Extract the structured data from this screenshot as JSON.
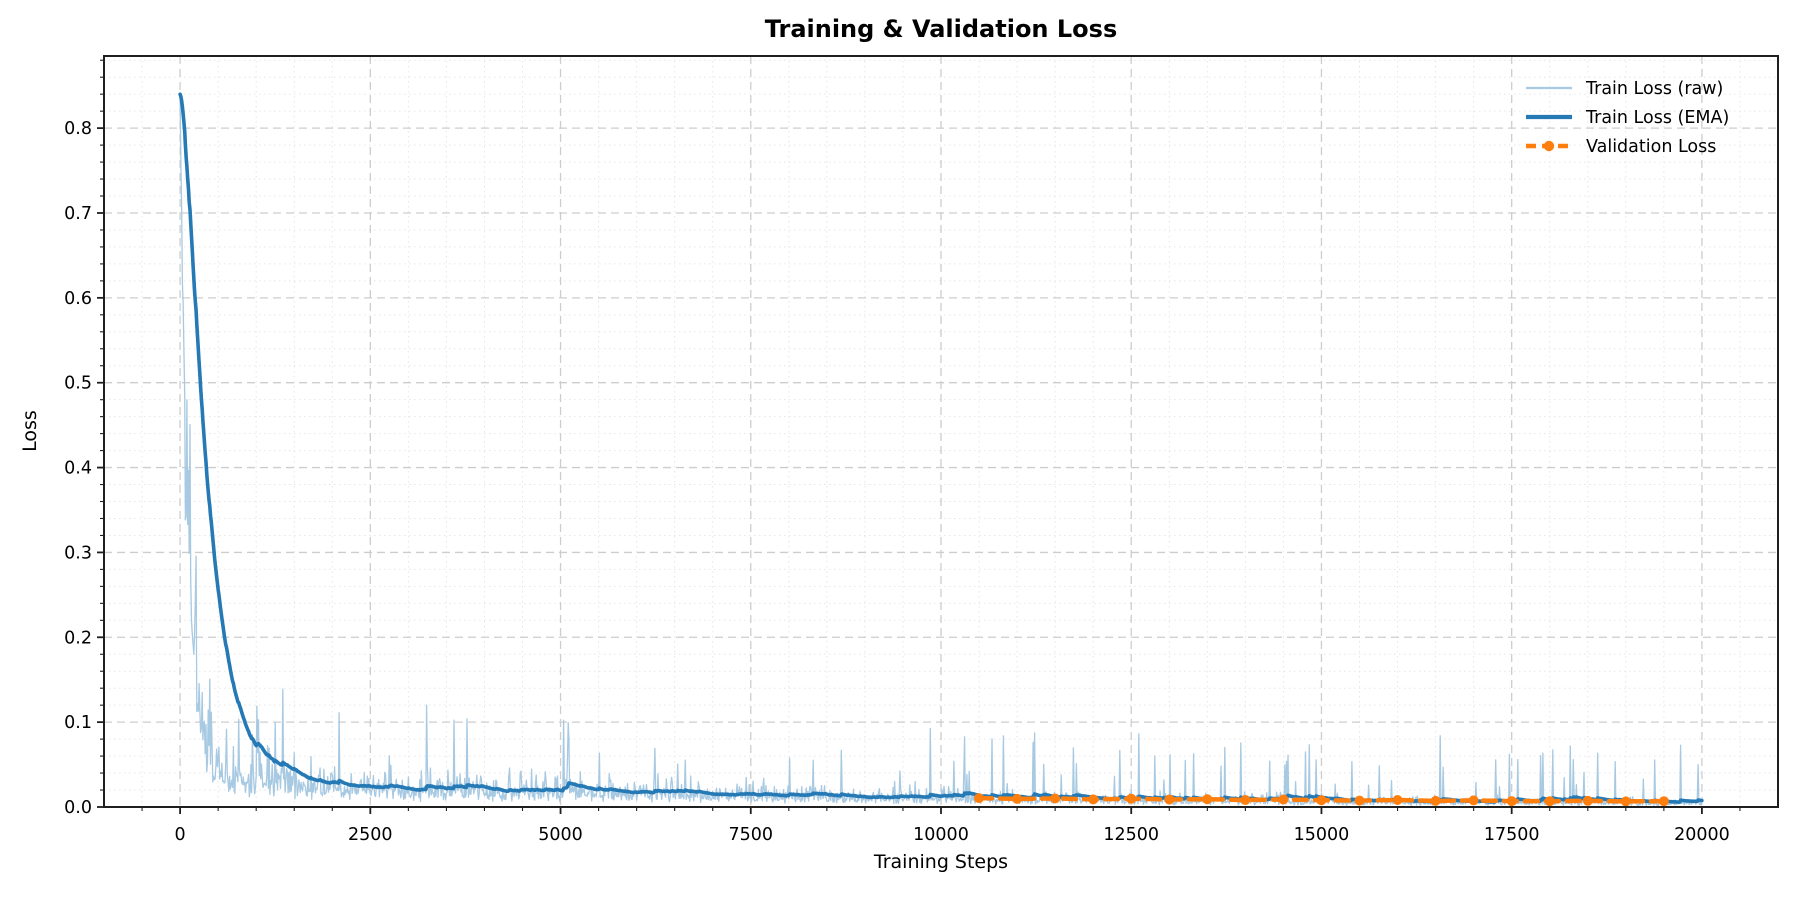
{
  "chart_data": {
    "type": "line",
    "title": "Training & Validation Loss",
    "xlabel": "Training Steps",
    "ylabel": "Loss",
    "xlim": [
      -1000,
      21000
    ],
    "ylim": [
      0,
      0.885
    ],
    "x_ticks": [
      0,
      2500,
      5000,
      7500,
      10000,
      12500,
      15000,
      17500,
      20000
    ],
    "x_tick_labels": [
      "0",
      "2500",
      "5000",
      "7500",
      "10000",
      "12500",
      "15000",
      "17500",
      "20000"
    ],
    "x_minor_step": 500,
    "y_ticks": [
      0,
      0.1,
      0.2,
      0.3,
      0.4,
      0.5,
      0.6,
      0.7,
      0.8
    ],
    "y_tick_labels": [
      "0.0",
      "0.1",
      "0.2",
      "0.3",
      "0.4",
      "0.5",
      "0.6",
      "0.7",
      "0.8"
    ],
    "y_minor_step": 0.02,
    "grid": {
      "major_style": "dashed",
      "minor_style": "dotted",
      "major_color": "#cdcdcd",
      "minor_color": "#e6e6e6"
    },
    "axes_color": "#1f1f1f",
    "text_color": "#000000",
    "background": "#ffffff",
    "legend": {
      "position": "upper-right",
      "frame": false
    },
    "series": [
      {
        "name": "Train Loss (raw)",
        "color": "#a7c9e2",
        "style": "solid",
        "line_width": 1.3,
        "description": "Noisy raw training loss: starts at 0.84, falls steeply to ~0.03 by step ~800, then decays slowly to ~0.008 by step 20000 with frequent upward spikes (up to ~0.14 mid-run, ~0.05 late).",
        "generator": {
          "seed": 42,
          "sample_step": 10,
          "sigma": 0.42,
          "mult_min": 0.35,
          "mult_max": 2.6,
          "spike_prob": 0.05,
          "spike_base": 0.02,
          "spike_range": 0.085,
          "spike_decay": 0.35,
          "fast_amp": 0.8,
          "fast_tau": 115,
          "base_scale": 0.78,
          "plateau_cap": 0.04,
          "floor": 0.0018,
          "baseline_from_series": "Train Loss (EMA)"
        }
      },
      {
        "name": "Train Loss (EMA)",
        "color": "#2579b5",
        "style": "solid",
        "line_width": 3.6,
        "ema_alpha": 0.035,
        "points": [
          [
            0,
            0.84
          ],
          [
            100,
            0.59
          ],
          [
            200,
            0.42
          ],
          [
            300,
            0.3
          ],
          [
            400,
            0.21
          ],
          [
            500,
            0.16
          ],
          [
            600,
            0.12
          ],
          [
            700,
            0.095
          ],
          [
            800,
            0.079
          ],
          [
            900,
            0.065
          ],
          [
            1000,
            0.055
          ],
          [
            1200,
            0.045
          ],
          [
            1500,
            0.036
          ],
          [
            2000,
            0.029
          ],
          [
            2500,
            0.027
          ],
          [
            3000,
            0.024
          ],
          [
            3500,
            0.023
          ],
          [
            4000,
            0.022
          ],
          [
            4500,
            0.023
          ],
          [
            5000,
            0.021
          ],
          [
            5500,
            0.02
          ],
          [
            6000,
            0.019
          ],
          [
            6500,
            0.018
          ],
          [
            7000,
            0.018
          ],
          [
            7500,
            0.017
          ],
          [
            8000,
            0.016
          ],
          [
            8500,
            0.015
          ],
          [
            9000,
            0.014
          ],
          [
            9500,
            0.013
          ],
          [
            10000,
            0.012
          ],
          [
            11000,
            0.011
          ],
          [
            12000,
            0.01
          ],
          [
            13000,
            0.009
          ],
          [
            14000,
            0.009
          ],
          [
            15000,
            0.008
          ],
          [
            16000,
            0.0075
          ],
          [
            17000,
            0.007
          ],
          [
            18000,
            0.0065
          ],
          [
            19000,
            0.006
          ],
          [
            20000,
            0.0055
          ]
        ]
      },
      {
        "name": "Validation Loss",
        "color": "#ff7f0e",
        "style": "dashed",
        "line_width": 4.5,
        "marker": "circle",
        "marker_radius": 5,
        "points": [
          [
            10500,
            0.0105
          ],
          [
            11000,
            0.0095
          ],
          [
            11500,
            0.01
          ],
          [
            12000,
            0.009
          ],
          [
            12500,
            0.0098
          ],
          [
            13000,
            0.0088
          ],
          [
            13500,
            0.0092
          ],
          [
            14000,
            0.0082
          ],
          [
            14500,
            0.0088
          ],
          [
            15000,
            0.008
          ],
          [
            15500,
            0.0076
          ],
          [
            16000,
            0.0082
          ],
          [
            16500,
            0.0072
          ],
          [
            17000,
            0.0078
          ],
          [
            17500,
            0.007
          ],
          [
            18000,
            0.0068
          ],
          [
            18500,
            0.0073
          ],
          [
            19000,
            0.0066
          ],
          [
            19500,
            0.0068
          ]
        ]
      }
    ]
  }
}
